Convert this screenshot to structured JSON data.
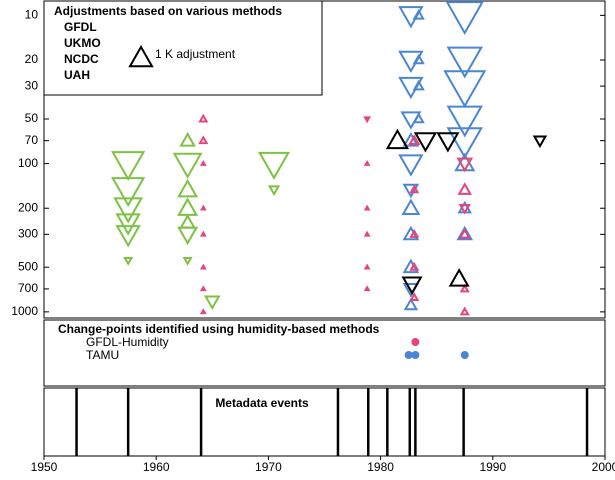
{
  "chart_data": [
    {
      "type": "scatter",
      "title": "Adjustments based on various methods",
      "key": {
        "label": "1 K adjustment",
        "size": 1
      },
      "xlim": [
        1950,
        2000
      ],
      "ylim": [
        8,
        1100
      ],
      "log_y": true,
      "y_inverted": true,
      "yticks": [
        10,
        20,
        30,
        50,
        70,
        100,
        200,
        300,
        500,
        700,
        1000
      ],
      "series": [
        {
          "name": "GFDL",
          "color": "#7dc242",
          "x": [
            1957.5,
            1957.5,
            1957.5,
            1957.5,
            1957.5,
            1957.5,
            1962.8,
            1962.8,
            1962.8,
            1962.8,
            1962.8,
            1962.8,
            1962.8,
            1970.5,
            1970.5,
            1965.0
          ],
          "values": [
            100,
            150,
            200,
            250,
            300,
            450,
            70,
            100,
            150,
            200,
            250,
            300,
            450,
            100,
            150,
            850
          ],
          "sizes": [
            -1.4,
            -1.4,
            -1.2,
            -1.0,
            -1.0,
            -0.3,
            0.6,
            -1.2,
            0.8,
            0.8,
            0.6,
            -0.8,
            -0.3,
            -1.3,
            -0.4,
            -0.6
          ]
        },
        {
          "name": "UKMO",
          "color": "#4a86d4",
          "x": [
            1982.7,
            1982.7,
            1982.7,
            1982.7,
            1982.7,
            1982.7,
            1982.7,
            1982.7,
            1982.7,
            1982.7,
            1982.7,
            1982.7,
            1983.4,
            1983.4,
            1983.4,
            1983.4,
            1987.5,
            1987.5,
            1987.5,
            1987.5,
            1987.5,
            1987.5,
            1987.5,
            1987.5
          ],
          "values": [
            10,
            20,
            30,
            50,
            70,
            100,
            150,
            200,
            300,
            500,
            700,
            900,
            10,
            20,
            30,
            50,
            10,
            20,
            30,
            50,
            70,
            100,
            200,
            300
          ],
          "sizes": [
            -1.0,
            -1.0,
            -1.0,
            -0.8,
            0.6,
            -1.0,
            -0.6,
            0.7,
            0.6,
            0.6,
            -0.6,
            0.5,
            0.4,
            0.4,
            0.4,
            0.4,
            -1.6,
            -1.5,
            -1.8,
            -1.5,
            -1.5,
            0.8,
            0.5,
            0.6
          ]
        },
        {
          "name": "NCDC",
          "color": "#e8437a",
          "x": [
            1964.2,
            1964.2,
            1964.2,
            1964.2,
            1964.2,
            1964.2,
            1964.2,
            1964.2,
            1978.8,
            1978.8,
            1978.8,
            1978.8,
            1978.8,
            1978.8,
            1983.0,
            1983.0,
            1983.0,
            1983.0,
            1983.0,
            1987.5,
            1987.5,
            1987.5,
            1987.5,
            1987.5,
            1987.5
          ],
          "values": [
            50,
            70,
            100,
            200,
            300,
            500,
            700,
            1000,
            50,
            100,
            200,
            300,
            500,
            700,
            70,
            150,
            300,
            500,
            800,
            100,
            150,
            200,
            300,
            700,
            1000
          ],
          "sizes": [
            0.3,
            0.3,
            0.15,
            0.15,
            0.15,
            0.15,
            0.15,
            0.15,
            -0.2,
            0.15,
            0.15,
            0.15,
            0.15,
            0.15,
            0.4,
            0.3,
            0.3,
            0.3,
            0.3,
            -0.6,
            0.5,
            -0.4,
            0.4,
            0.3,
            0.3
          ]
        },
        {
          "name": "UAH",
          "color": "#000000",
          "x": [
            1981.5,
            1984.0,
            1986.0,
            1994.2,
            1982.8,
            1987.0
          ],
          "values": [
            70,
            70,
            70,
            70,
            650,
            600
          ],
          "sizes": [
            0.9,
            -0.9,
            -0.9,
            -0.5,
            -0.8,
            0.8
          ]
        }
      ]
    },
    {
      "type": "events-dots",
      "title": "Change-points identified using humidity-based methods",
      "xlim": [
        1950,
        2000
      ],
      "series": [
        {
          "name": "GFDL-Humidity",
          "color": "#e8437a",
          "x": [
            1983.1
          ]
        },
        {
          "name": "TAMU",
          "color": "#4a86d4",
          "x": [
            1982.5,
            1983.1,
            1987.5
          ]
        }
      ]
    },
    {
      "type": "events",
      "title": "Metadata events",
      "xlim": [
        1950,
        2000
      ],
      "xticks": [
        1950,
        1960,
        1970,
        1980,
        1990,
        2000
      ],
      "x": [
        1952.9,
        1957.5,
        1964.0,
        1976.2,
        1978.9,
        1980.6,
        1982.6,
        1983.1,
        1987.4,
        1998.4
      ]
    }
  ]
}
